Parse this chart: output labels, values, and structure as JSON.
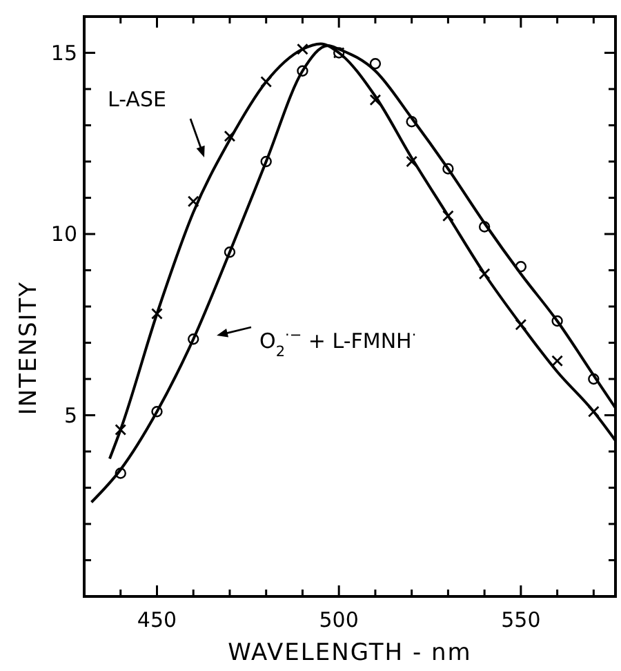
{
  "chart_data": {
    "type": "line",
    "xlabel": "WAVELENGTH - nm",
    "ylabel": "INTENSITY",
    "xlim": [
      430,
      576
    ],
    "ylim": [
      0,
      16
    ],
    "xticks": [
      {
        "value": 440,
        "label": null
      },
      450,
      {
        "value": 460,
        "label": null
      },
      {
        "value": 470,
        "label": null
      },
      {
        "value": 480,
        "label": null
      },
      {
        "value": 490,
        "label": null
      },
      500,
      {
        "value": 510,
        "label": null
      },
      {
        "value": 520,
        "label": null
      },
      {
        "value": 530,
        "label": null
      },
      {
        "value": 540,
        "label": null
      },
      550,
      {
        "value": 560,
        "label": null
      },
      {
        "value": 570,
        "label": null
      }
    ],
    "yticks": [
      {
        "value": 1,
        "label": null
      },
      {
        "value": 2,
        "label": null
      },
      {
        "value": 3,
        "label": null
      },
      {
        "value": 4,
        "label": null
      },
      5,
      {
        "value": 6,
        "label": null
      },
      {
        "value": 7,
        "label": null
      },
      {
        "value": 8,
        "label": null
      },
      {
        "value": 9,
        "label": null
      },
      10,
      {
        "value": 11,
        "label": null
      },
      {
        "value": 12,
        "label": null
      },
      {
        "value": 13,
        "label": null
      },
      {
        "value": 14,
        "label": null
      },
      15,
      {
        "value": 16,
        "label": null
      }
    ],
    "grid": false,
    "annotations": [
      "L-ASE",
      "O$_{2}$$^{·−}$ + L-FMNH$^{·}$"
    ],
    "series": [
      {
        "type": "scatter",
        "marker": "cross",
        "color": "#000000",
        "x": [
          440,
          450,
          460,
          470,
          480,
          490,
          500,
          510,
          520,
          530,
          540,
          550,
          560,
          570
        ],
        "values": [
          4.6,
          7.8,
          10.9,
          12.7,
          14.2,
          15.1,
          15.0,
          13.7,
          12.0,
          10.5,
          8.9,
          7.5,
          6.5,
          5.1
        ]
      },
      {
        "type": "scatter",
        "marker": "circle",
        "color": "#000000",
        "x": [
          440,
          450,
          460,
          470,
          480,
          490,
          500,
          510,
          520,
          530,
          540,
          550,
          560,
          570
        ],
        "values": [
          3.4,
          5.1,
          7.1,
          9.5,
          12.0,
          14.5,
          15.0,
          14.7,
          13.1,
          11.8,
          10.2,
          9.1,
          7.6,
          6.0
        ]
      },
      {
        "marker": "none",
        "color": "#000000",
        "x": [
          437,
          440,
          450,
          460,
          470,
          480,
          490,
          495,
          500,
          510,
          520,
          530,
          540,
          550,
          560,
          570,
          576
        ],
        "values": [
          3.8,
          4.6,
          7.8,
          10.6,
          12.6,
          14.2,
          15.1,
          15.25,
          15.0,
          13.8,
          12.1,
          10.5,
          8.9,
          7.5,
          6.2,
          5.1,
          4.3
        ]
      },
      {
        "marker": "none",
        "color": "#000000",
        "x": [
          432,
          440,
          450,
          460,
          470,
          480,
          490,
          497,
          500,
          510,
          520,
          530,
          540,
          550,
          560,
          570,
          576
        ],
        "values": [
          2.6,
          3.5,
          5.1,
          7.1,
          9.5,
          12.0,
          14.5,
          15.2,
          15.1,
          14.5,
          13.2,
          11.8,
          10.3,
          8.9,
          7.6,
          6.1,
          5.2
        ]
      }
    ]
  }
}
